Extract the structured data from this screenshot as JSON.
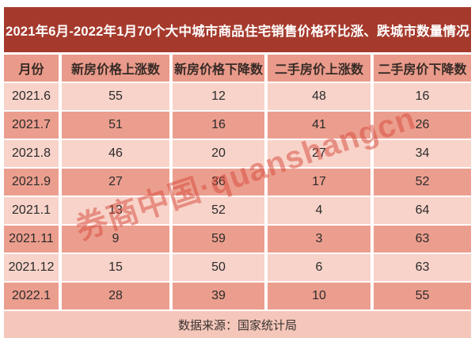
{
  "title": "2021年6月-2022年1月70个大中城市商品住宅销售价格环比涨、跌城市数量情况",
  "table": {
    "headers": [
      "月份",
      "新房价格上涨数",
      "新房价格下降数",
      "二手房价上涨数",
      "二手房价下降数"
    ],
    "rows": [
      {
        "month": "2021.6",
        "values": [
          "55",
          "12",
          "48",
          "16"
        ]
      },
      {
        "month": "2021.7",
        "values": [
          "51",
          "16",
          "41",
          "26"
        ]
      },
      {
        "month": "2021.8",
        "values": [
          "46",
          "20",
          "27",
          "34"
        ]
      },
      {
        "month": "2021.9",
        "values": [
          "27",
          "36",
          "17",
          "52"
        ]
      },
      {
        "month": "2021.1",
        "values": [
          "13",
          "52",
          "4",
          "64"
        ]
      },
      {
        "month": "2021.11",
        "values": [
          "9",
          "59",
          "3",
          "63"
        ]
      },
      {
        "month": "2021.12",
        "values": [
          "15",
          "50",
          "6",
          "63"
        ]
      },
      {
        "month": "2022.1",
        "values": [
          "28",
          "39",
          "10",
          "55"
        ]
      }
    ]
  },
  "footer": {
    "text": "数据来源：国家统计局"
  },
  "watermark": {
    "text": "券商中国·quanshangcn"
  },
  "colors": {
    "banner": "#a53a2c",
    "title_text": "#ffffff",
    "header_row": "#ea9a8a",
    "row_light": "#f8d3c9",
    "row_dark": "#ec9e8e",
    "footer_band": "#f4c7ba",
    "cell_text": "#2b2b2b",
    "watermark": "#d84a3c"
  },
  "chart_data": {
    "type": "table",
    "title": "2021年6月-2022年1月70个大中城市商品住宅销售价格环比涨、跌城市数量情况",
    "columns": [
      "月份",
      "新房价格上涨数",
      "新房价格下降数",
      "二手房价上涨数",
      "二手房价下降数"
    ],
    "rows": [
      [
        "2021.6",
        55,
        12,
        48,
        16
      ],
      [
        "2021.7",
        51,
        16,
        41,
        26
      ],
      [
        "2021.8",
        46,
        20,
        27,
        34
      ],
      [
        "2021.9",
        27,
        36,
        17,
        52
      ],
      [
        "2021.1",
        13,
        52,
        4,
        64
      ],
      [
        "2021.11",
        9,
        59,
        3,
        63
      ],
      [
        "2021.12",
        15,
        50,
        6,
        63
      ],
      [
        "2022.1",
        28,
        39,
        10,
        55
      ]
    ],
    "source": "数据来源：国家统计局"
  }
}
